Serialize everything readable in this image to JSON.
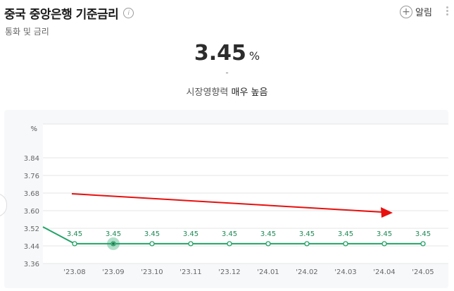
{
  "header": {
    "title": "중국 중앙은행 기준금리",
    "info_icon": "i",
    "subtitle": "통화 및 금리",
    "alarm_label": "알림"
  },
  "summary": {
    "value": "3.45",
    "unit": "%",
    "change": "-",
    "impact_prefix": "시장영향력",
    "impact_level": "매우 높음"
  },
  "chart_data": {
    "type": "line",
    "unit_label": "%",
    "categories": [
      "'23.08",
      "'23.09",
      "'23.10",
      "'23.11",
      "'23.12",
      "'24.01",
      "'24.02",
      "'24.03",
      "'24.04",
      "'24.05"
    ],
    "series": [
      {
        "values": [
          3.45,
          3.45,
          3.45,
          3.45,
          3.45,
          3.45,
          3.45,
          3.45,
          3.45,
          3.45
        ],
        "color": "#21a366"
      }
    ],
    "data_labels": [
      "3.45",
      "3.45",
      "3.45",
      "3.45",
      "3.45",
      "3.45",
      "3.45",
      "3.45",
      "3.45",
      "3.45"
    ],
    "y_ticks": [
      "3.84",
      "3.76",
      "3.68",
      "3.60",
      "3.52",
      "3.44",
      "3.36"
    ],
    "ylim": [
      3.36,
      3.84
    ],
    "highlight_index": 1,
    "trend_arrow_color": "#e8100e",
    "grid": true
  }
}
